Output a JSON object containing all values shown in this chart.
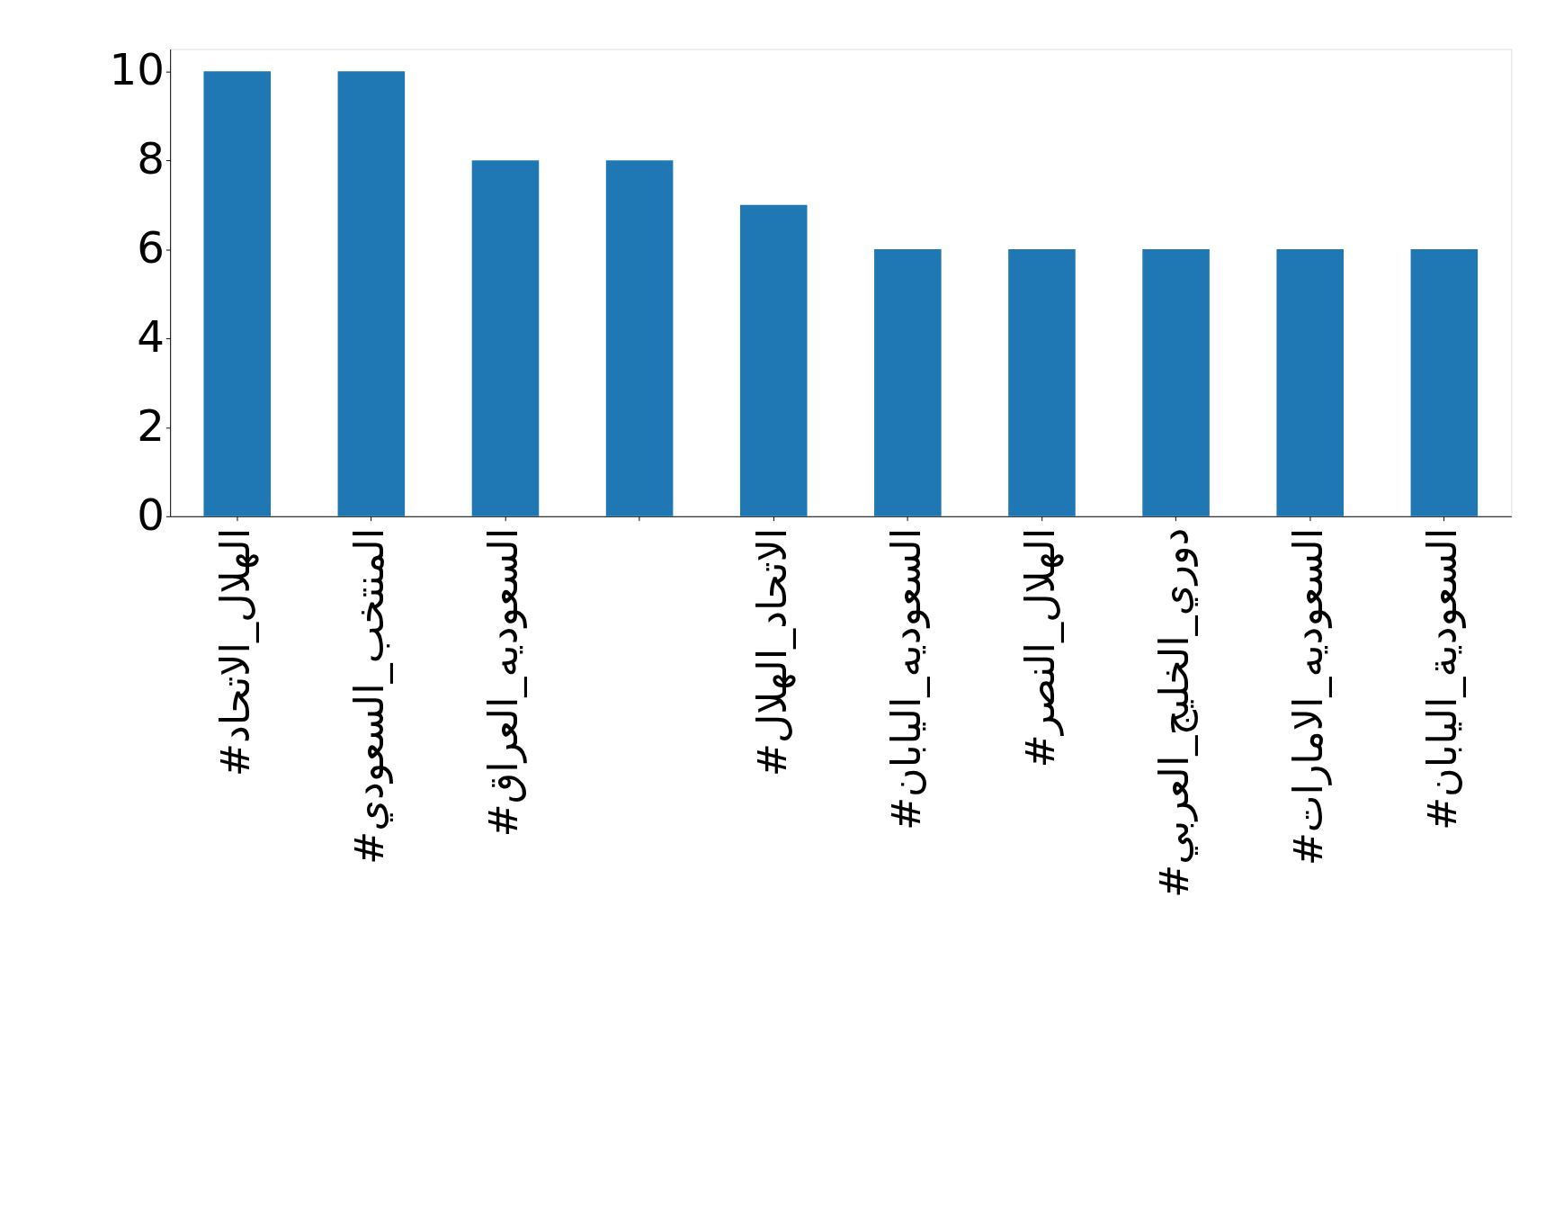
{
  "chart_data": {
    "type": "bar",
    "categories": [
      "#الهلال_الاتحاد",
      "#المنتخب_السعودي",
      "#السعوديه_العراق",
      null,
      "#الاتحاد_الهلال",
      "#السعوديه_اليابان",
      "#الهلال_النصر",
      "#دوري_الخليج_العربي",
      "#السعوديه_الامارات",
      "#السعودية_اليابان"
    ],
    "values": [
      10,
      10,
      8,
      8,
      7,
      6,
      6,
      6,
      6,
      6
    ],
    "color": "#1f77b4",
    "ylim": [
      0,
      10.5
    ],
    "yticks": [
      0,
      2,
      4,
      6,
      8,
      10
    ],
    "grid": false
  }
}
